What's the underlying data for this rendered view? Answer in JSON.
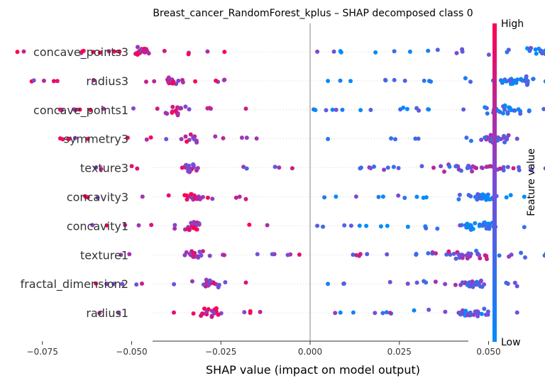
{
  "chart_data": {
    "type": "scatter",
    "title": "Breast_cancer_RandomForest_kplus – SHAP decomposed class 0",
    "xlabel": "SHAP value (impact on model output)",
    "xlim": [
      -0.09,
      0.09
    ],
    "xticks": [
      -0.075,
      -0.05,
      -0.025,
      0.0,
      0.025,
      0.05,
      0.075
    ],
    "xtick_labels": [
      "−0.075",
      "−0.050",
      "−0.025",
      "0.000",
      "0.025",
      "0.050",
      "0.075"
    ],
    "features": [
      "concave_points3",
      "radius3",
      "concave_points1",
      "symmetry3",
      "texture3",
      "concavity3",
      "concavity1",
      "texture1",
      "fractal_dimension2",
      "radius1"
    ],
    "colorbar": {
      "label": "Feature value",
      "high": "High",
      "low": "Low",
      "high_color": "#ff0052",
      "low_color": "#008bfb"
    },
    "grid": false,
    "series": [
      {
        "feature": "concave_points3",
        "neg": {
          "min": -0.082,
          "max": -0.024,
          "center": -0.047,
          "spread": 0.004,
          "n": 32,
          "bias": 0.85
        },
        "pos": {
          "min": 0.002,
          "max": 0.084,
          "center": 0.066,
          "spread": 0.008,
          "n": 45,
          "bias": 0.2
        }
      },
      {
        "feature": "radius3",
        "neg": {
          "min": -0.078,
          "max": -0.024,
          "center": -0.039,
          "spread": 0.004,
          "n": 28,
          "bias": 0.8
        },
        "pos": {
          "min": 0.005,
          "max": 0.07,
          "center": 0.058,
          "spread": 0.008,
          "n": 45,
          "bias": 0.1
        }
      },
      {
        "feature": "concave_points1",
        "neg": {
          "min": -0.07,
          "max": -0.018,
          "center": -0.038,
          "spread": 0.004,
          "n": 28,
          "bias": 0.8
        },
        "pos": {
          "min": 0.001,
          "max": 0.075,
          "center": 0.055,
          "spread": 0.01,
          "n": 45,
          "bias": 0.15
        }
      },
      {
        "feature": "symmetry3",
        "neg": {
          "min": -0.07,
          "max": -0.015,
          "center": -0.033,
          "spread": 0.004,
          "n": 28,
          "bias": 0.75
        },
        "pos": {
          "min": 0.005,
          "max": 0.058,
          "center": 0.052,
          "spread": 0.005,
          "n": 40,
          "bias": 0.45
        }
      },
      {
        "feature": "texture3",
        "neg": {
          "min": -0.06,
          "max": -0.005,
          "center": -0.034,
          "spread": 0.004,
          "n": 28,
          "bias": 0.6
        },
        "pos": {
          "min": 0.014,
          "max": 0.083,
          "center": 0.045,
          "spread": 0.015,
          "n": 50,
          "bias": 0.5
        }
      },
      {
        "feature": "concavity3",
        "neg": {
          "min": -0.063,
          "max": -0.018,
          "center": -0.033,
          "spread": 0.004,
          "n": 30,
          "bias": 0.8
        },
        "pos": {
          "min": 0.004,
          "max": 0.06,
          "center": 0.048,
          "spread": 0.006,
          "n": 45,
          "bias": 0.15
        }
      },
      {
        "feature": "concavity1",
        "neg": {
          "min": -0.061,
          "max": -0.012,
          "center": -0.033,
          "spread": 0.004,
          "n": 30,
          "bias": 0.8
        },
        "pos": {
          "min": 0.002,
          "max": 0.06,
          "center": 0.048,
          "spread": 0.007,
          "n": 45,
          "bias": 0.12
        }
      },
      {
        "feature": "texture1",
        "neg": {
          "min": -0.053,
          "max": -0.003,
          "center": -0.032,
          "spread": 0.004,
          "n": 28,
          "bias": 0.65
        },
        "pos": {
          "min": 0.012,
          "max": 0.08,
          "center": 0.045,
          "spread": 0.015,
          "n": 50,
          "bias": 0.5
        }
      },
      {
        "feature": "fractal_dimension2",
        "neg": {
          "min": -0.06,
          "max": -0.018,
          "center": -0.028,
          "spread": 0.004,
          "n": 28,
          "bias": 0.7
        },
        "pos": {
          "min": 0.005,
          "max": 0.058,
          "center": 0.045,
          "spread": 0.006,
          "n": 40,
          "bias": 0.4
        }
      },
      {
        "feature": "radius1",
        "neg": {
          "min": -0.059,
          "max": -0.014,
          "center": -0.028,
          "spread": 0.004,
          "n": 28,
          "bias": 0.8
        },
        "pos": {
          "min": 0.007,
          "max": 0.058,
          "center": 0.045,
          "spread": 0.006,
          "n": 40,
          "bias": 0.3
        }
      }
    ]
  }
}
